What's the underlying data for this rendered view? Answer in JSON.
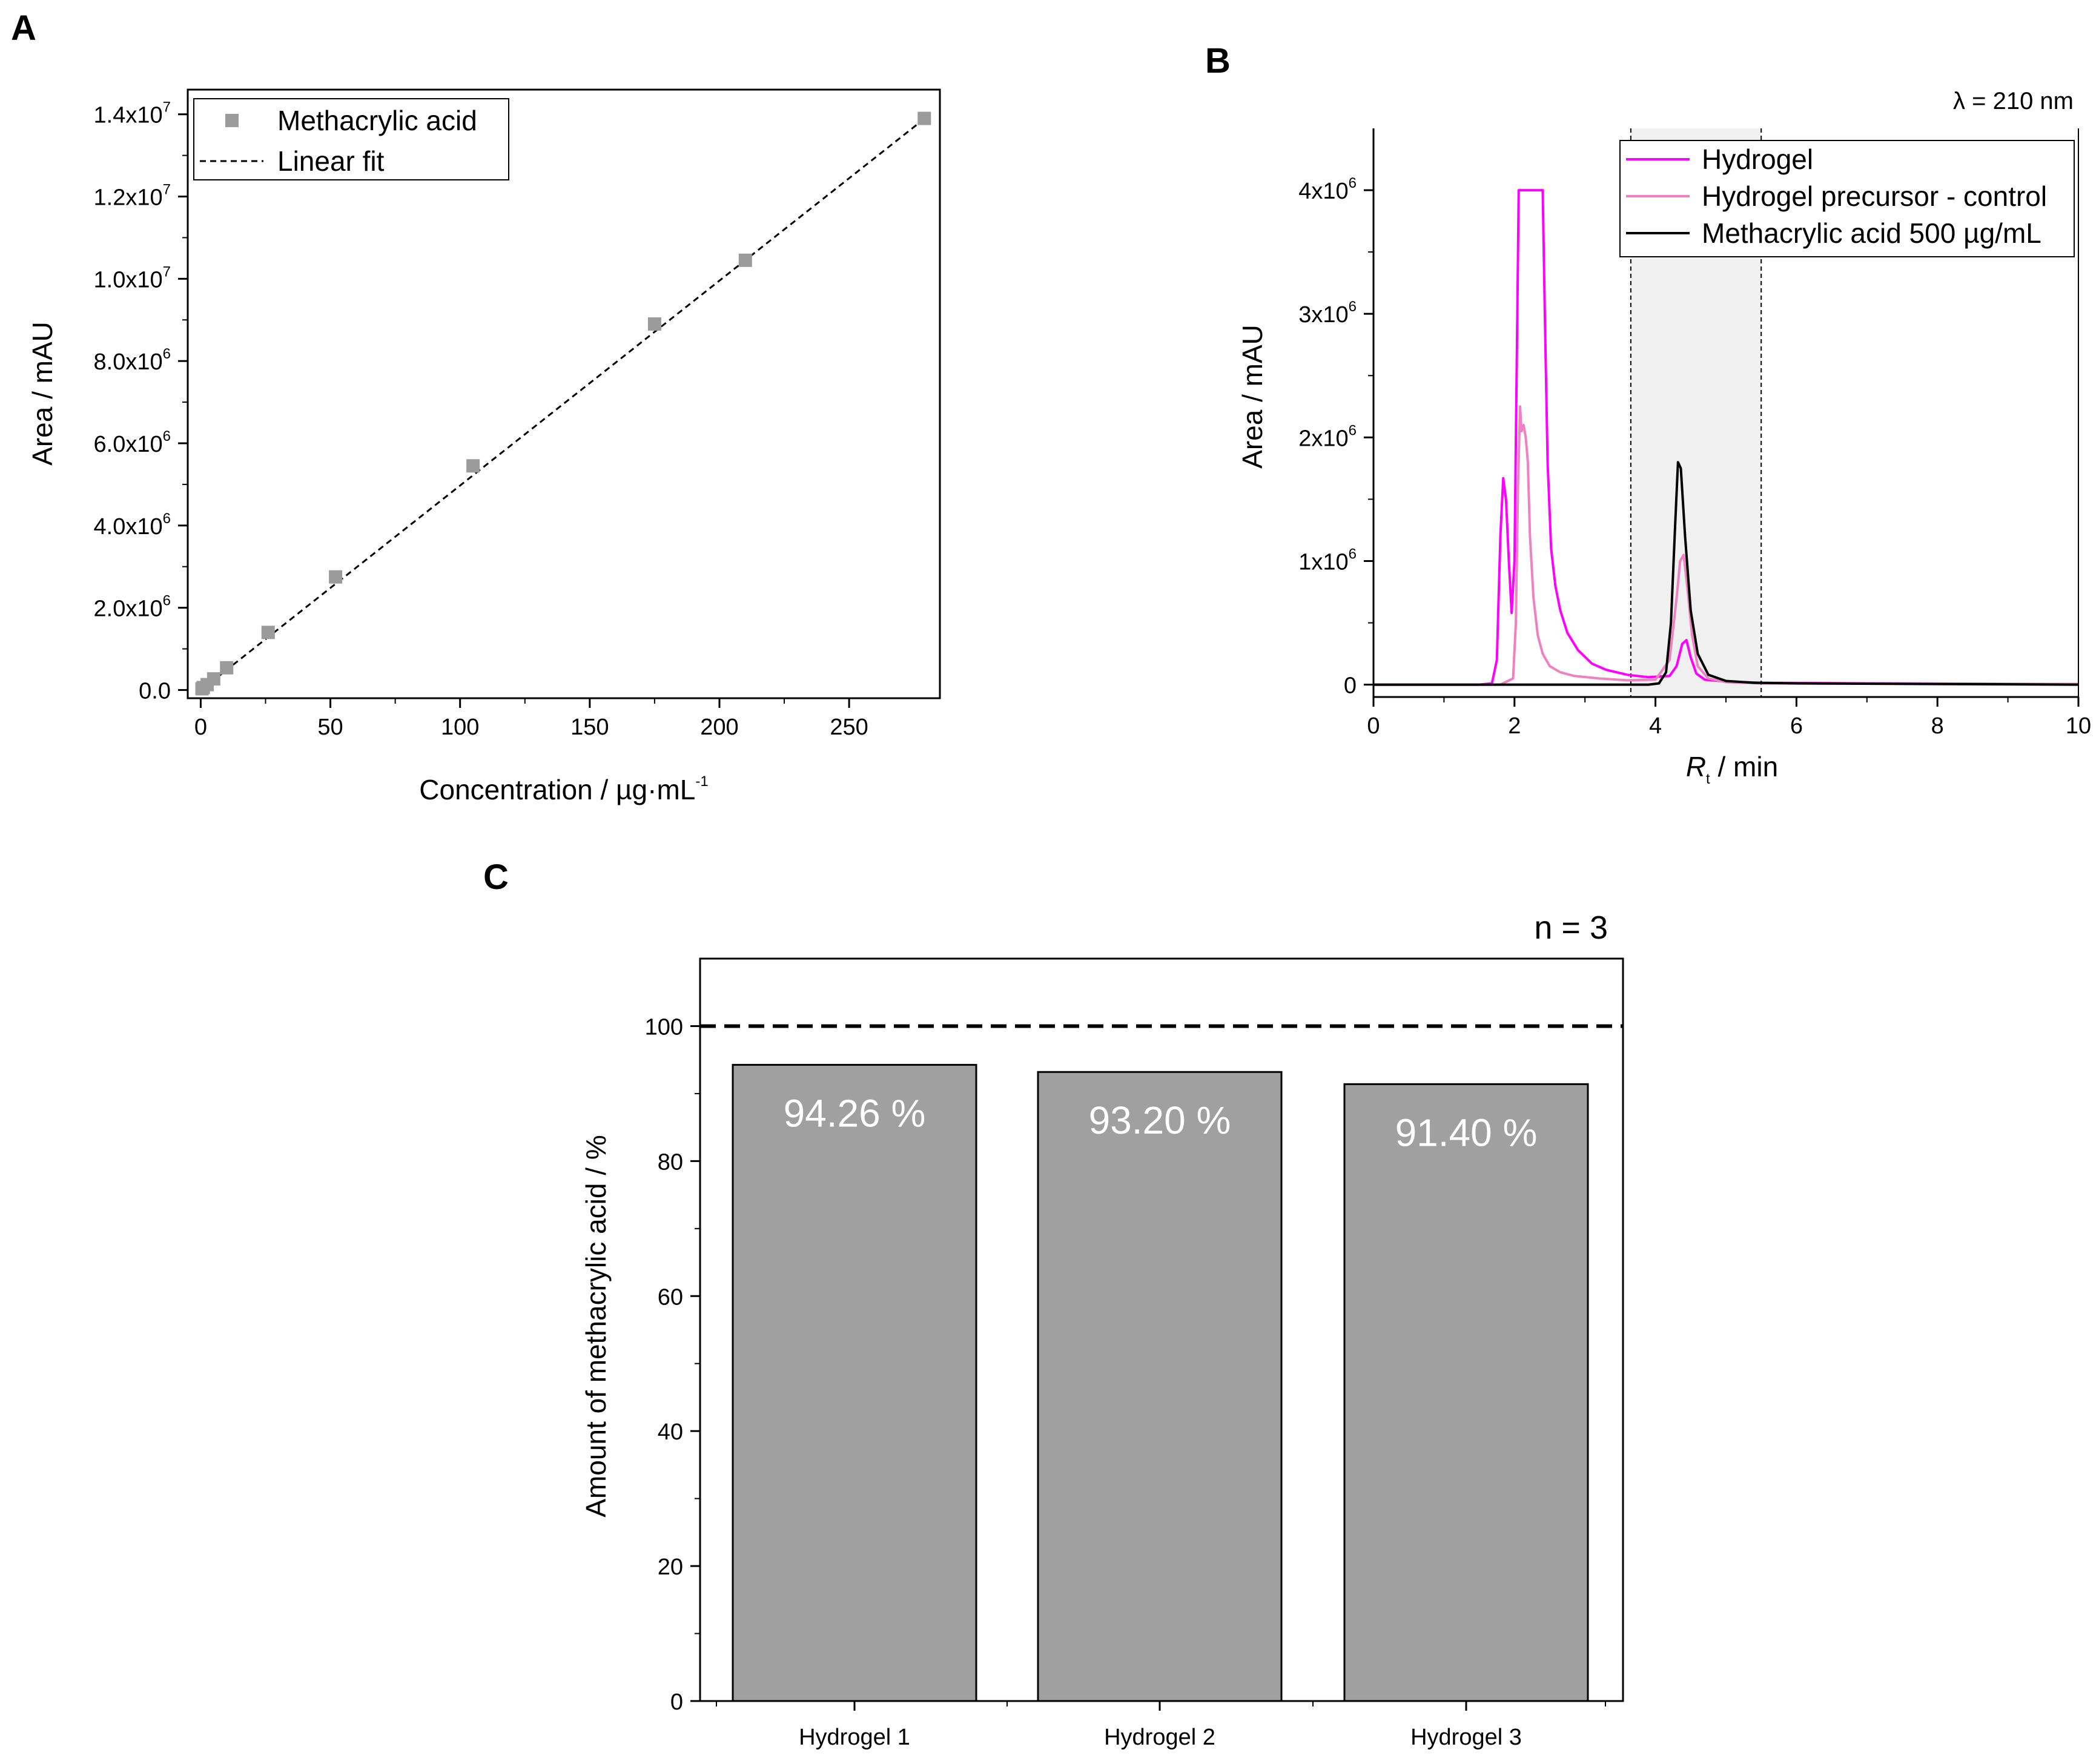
{
  "figure": {
    "panel_labels": [
      "A",
      "B",
      "C"
    ]
  },
  "chart_data": [
    {
      "id": "A",
      "type": "scatter",
      "xlabel": "Concentration / µg·mL",
      "xlabel_sup": "-1",
      "ylabel": "Area / mAU",
      "xlim": [
        -5,
        285
      ],
      "ylim": [
        -200000,
        14600000
      ],
      "x_ticks": [
        "0",
        "50",
        "100",
        "150",
        "200",
        "250"
      ],
      "x_tick_values": [
        0,
        50,
        100,
        150,
        200,
        250
      ],
      "y_ticks": [
        {
          "mant": "0.0",
          "exp": ""
        },
        {
          "mant": "2.0x10",
          "exp": "6"
        },
        {
          "mant": "4.0x10",
          "exp": "6"
        },
        {
          "mant": "6.0x10",
          "exp": "6"
        },
        {
          "mant": "8.0x10",
          "exp": "6"
        },
        {
          "mant": "1.0x10",
          "exp": "7"
        },
        {
          "mant": "1.2x10",
          "exp": "7"
        },
        {
          "mant": "1.4x10",
          "exp": "7"
        }
      ],
      "y_tick_values": [
        0,
        2000000,
        4000000,
        6000000,
        8000000,
        10000000,
        12000000,
        14000000
      ],
      "series": [
        {
          "name": "Methacrylic acid",
          "color": "#9b9b9b",
          "points": [
            [
              0.5,
              30000
            ],
            [
              1,
              60000
            ],
            [
              2.5,
              130000
            ],
            [
              5,
              270000
            ],
            [
              10,
              540000
            ],
            [
              26,
              1400000
            ],
            [
              52,
              2750000
            ],
            [
              105,
              5450000
            ],
            [
              175,
              8900000
            ],
            [
              210,
              10450000
            ],
            [
              279,
              13900000
            ]
          ]
        }
      ],
      "fit": {
        "name": "Linear fit",
        "x": [
          0,
          280
        ],
        "y": [
          -10000,
          13940000
        ],
        "color": "#000000"
      },
      "legend": [
        "Methacrylic acid",
        "Linear fit"
      ],
      "legend_position": "top-left"
    },
    {
      "id": "B",
      "type": "line",
      "xlabel_italic": "R",
      "xlabel_sub": "t",
      "xlabel_rest": " / min",
      "ylabel": "Area / mAU",
      "annotation": "λ = 210 nm",
      "xlim": [
        0,
        10
      ],
      "ylim": [
        -100000,
        4500000
      ],
      "x_ticks": [
        "0",
        "2",
        "4",
        "6",
        "8",
        "10"
      ],
      "x_tick_values": [
        0,
        2,
        4,
        6,
        8,
        10
      ],
      "y_ticks": [
        {
          "mant": "0",
          "exp": ""
        },
        {
          "mant": "1x10",
          "exp": "6"
        },
        {
          "mant": "2x10",
          "exp": "6"
        },
        {
          "mant": "3x10",
          "exp": "6"
        },
        {
          "mant": "4x10",
          "exp": "6"
        }
      ],
      "y_tick_values": [
        0,
        1000000,
        2000000,
        3000000,
        4000000
      ],
      "shaded_region": [
        3.65,
        5.5
      ],
      "series": [
        {
          "name": "Hydrogel",
          "color": "#ff00ff",
          "x": [
            0,
            1.5,
            1.68,
            1.75,
            1.8,
            1.84,
            1.88,
            1.92,
            1.96,
            2.0,
            2.04,
            2.06,
            2.09,
            2.4,
            2.43,
            2.47,
            2.52,
            2.58,
            2.65,
            2.75,
            2.9,
            3.1,
            3.3,
            3.6,
            3.9,
            4.2,
            4.3,
            4.38,
            4.44,
            4.5,
            4.58,
            4.7,
            5.0,
            5.5,
            7,
            10
          ],
          "y": [
            0,
            0,
            10000,
            200000,
            1200000,
            1670000,
            1500000,
            1000000,
            580000,
            1000000,
            3000000,
            4000000,
            4000000,
            4000000,
            3000000,
            1800000,
            1100000,
            800000,
            600000,
            420000,
            280000,
            170000,
            120000,
            80000,
            60000,
            70000,
            150000,
            330000,
            360000,
            220000,
            90000,
            40000,
            25000,
            15000,
            10000,
            5000
          ]
        },
        {
          "name": "Hydrogel precursor - control",
          "color": "#f080c0",
          "x": [
            0,
            1.8,
            1.98,
            2.02,
            2.05,
            2.08,
            2.1,
            2.13,
            2.16,
            2.19,
            2.22,
            2.27,
            2.33,
            2.4,
            2.5,
            2.65,
            2.85,
            3.2,
            3.6,
            4.0,
            4.2,
            4.3,
            4.35,
            4.4,
            4.45,
            4.52,
            4.6,
            4.75,
            5.0,
            5.5,
            10
          ],
          "y": [
            0,
            0,
            50000,
            500000,
            1600000,
            2250000,
            2050000,
            2100000,
            2000000,
            1800000,
            1200000,
            700000,
            400000,
            250000,
            150000,
            100000,
            70000,
            50000,
            35000,
            40000,
            200000,
            700000,
            1000000,
            1050000,
            800000,
            400000,
            150000,
            50000,
            20000,
            10000,
            5000
          ]
        },
        {
          "name": "Methacrylic acid 500 µg/mL",
          "color": "#000000",
          "x": [
            0,
            3.9,
            4.05,
            4.15,
            4.22,
            4.28,
            4.32,
            4.36,
            4.42,
            4.5,
            4.6,
            4.75,
            5.0,
            5.4,
            6,
            10
          ],
          "y": [
            0,
            0,
            10000,
            100000,
            500000,
            1300000,
            1800000,
            1750000,
            1200000,
            600000,
            250000,
            80000,
            30000,
            15000,
            10000,
            0
          ]
        }
      ],
      "legend": [
        "Hydrogel",
        "Hydrogel precursor - control",
        "Methacrylic acid 500 µg/mL"
      ],
      "legend_position": "top-right"
    },
    {
      "id": "C",
      "type": "bar",
      "ylabel": "Amount of methacrylic acid / %",
      "categories": [
        "Hydrogel 1",
        "Hydrogel 2",
        "Hydrogel 3"
      ],
      "values": [
        94.26,
        93.2,
        91.4
      ],
      "data_labels": [
        "94.26 %",
        "93.20 %",
        "91.40 %"
      ],
      "ylim": [
        0,
        110
      ],
      "y_ticks": [
        "0",
        "20",
        "40",
        "60",
        "80",
        "100"
      ],
      "y_tick_values": [
        0,
        20,
        40,
        60,
        80,
        100
      ],
      "reference_line": 100,
      "annotation": "n = 3",
      "bar_color": "#a0a0a0",
      "label_color": "#ffffff"
    }
  ]
}
